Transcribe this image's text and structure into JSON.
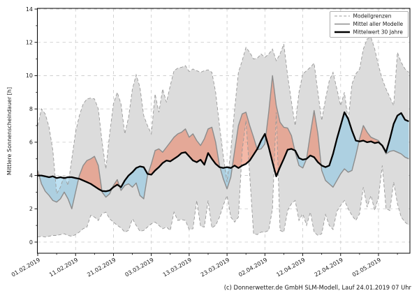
{
  "axes": {
    "ylabel": "Mittlere Sonnenscheindauer [h]",
    "caption": "(c) Donnerwetter.de GmbH SLM-Modell, Lauf 24.01.2019 07 Uhr"
  },
  "legend": {
    "position": "upper right",
    "items": [
      {
        "label": "Modellgrenzen",
        "style": "dashed",
        "color": "#999999"
      },
      {
        "label": "Mittel aller Modelle",
        "style": "solid",
        "color": "#8c8c8c"
      },
      {
        "label": "Mittelwert 30 Jahre",
        "style": "solid-bold",
        "color": "#000000"
      }
    ]
  },
  "colors": {
    "band_fill": "#dcdcdc",
    "band_edge": "#999999",
    "grid": "#c8c8c8",
    "model_mean_line": "#8c8c8c",
    "climate_mean_line": "#000000",
    "above_normal_fill": "rgba(235,125,95,0.55)",
    "below_normal_fill": "rgba(125,195,230,0.50)",
    "frame": "#000000",
    "background": "#ffffff"
  },
  "chart_data": {
    "type": "line",
    "title": "",
    "xlabel": "",
    "ylabel": "Mittlere Sonnenscheindauer [h]",
    "grid": true,
    "legend_position": "upper right",
    "ylim": [
      -0.66,
      14.05
    ],
    "xlim_days": [
      0,
      98.3
    ],
    "yticks": [
      0,
      2,
      4,
      6,
      8,
      10,
      12,
      14
    ],
    "ytick_minor": [
      1,
      3,
      5,
      7,
      9,
      11,
      13
    ],
    "xtick_days": [
      0,
      10,
      20,
      30,
      40,
      50,
      60,
      70,
      80,
      90
    ],
    "xtick_minor_days": [
      5,
      15,
      25,
      35,
      45,
      55,
      65,
      75,
      85,
      95
    ],
    "xtick_labels": [
      "01.02.2019",
      "11.02.2019",
      "21.02.2019",
      "03.03.2019",
      "13.03.2019",
      "23.03.2019",
      "02.04.2019",
      "12.04.2019",
      "22.04.2019",
      "02.05.2019"
    ],
    "x_step_days": 1,
    "series": [
      {
        "name": "Modellgrenzen (oben)",
        "style": "dashed",
        "color": "#999999",
        "values": [
          7.0,
          8.0,
          7.7,
          6.9,
          5.5,
          2.9,
          3.3,
          4.0,
          3.4,
          5.0,
          6.6,
          7.6,
          8.3,
          8.6,
          8.65,
          8.6,
          8.0,
          6.0,
          4.4,
          6.5,
          8.3,
          9.0,
          8.3,
          6.5,
          7.5,
          9.2,
          10.05,
          9.3,
          7.6,
          7.0,
          6.5,
          8.9,
          7.8,
          9.2,
          8.4,
          9.4,
          10.3,
          10.45,
          10.5,
          10.6,
          10.25,
          10.4,
          10.3,
          10.2,
          10.3,
          10.35,
          10.2,
          9.0,
          7.0,
          5.2,
          3.6,
          5.5,
          8.0,
          10.2,
          10.9,
          11.7,
          11.4,
          11.0,
          11.05,
          11.3,
          11.1,
          11.3,
          11.6,
          10.9,
          11.3,
          11.9,
          10.0,
          8.45,
          7.0,
          9.0,
          10.1,
          10.3,
          10.5,
          10.75,
          9.0,
          7.3,
          8.6,
          9.7,
          10.2,
          9.2,
          8.2,
          9.0,
          7.3,
          9.5,
          10.1,
          10.4,
          11.6,
          12.2,
          12.3,
          11.6,
          10.6,
          9.8,
          9.2,
          8.7,
          8.2,
          11.4,
          10.8,
          10.4,
          10.2
        ]
      },
      {
        "name": "Modellgrenzen (unten)",
        "style": "dashed",
        "color": "#999999",
        "values": [
          0.3,
          0.35,
          0.3,
          0.35,
          0.4,
          0.4,
          0.45,
          0.5,
          0.4,
          0.35,
          0.45,
          0.6,
          0.8,
          0.9,
          1.6,
          1.5,
          1.3,
          1.7,
          1.8,
          1.4,
          1.2,
          1.0,
          0.85,
          0.6,
          0.7,
          1.4,
          1.0,
          0.65,
          0.7,
          0.9,
          1.1,
          1.2,
          1.0,
          0.8,
          0.9,
          0.7,
          1.8,
          1.3,
          1.35,
          1.3,
          0.75,
          0.8,
          2.5,
          0.95,
          0.9,
          2.5,
          0.85,
          1.0,
          1.5,
          2.2,
          2.8,
          1.5,
          1.2,
          1.5,
          5.5,
          7.3,
          4.0,
          0.5,
          0.45,
          0.6,
          0.6,
          0.7,
          2.0,
          7.8,
          0.7,
          0.6,
          1.9,
          2.3,
          2.5,
          1.3,
          1.7,
          1.0,
          1.8,
          0.6,
          0.4,
          0.5,
          1.65,
          1.0,
          0.75,
          1.85,
          2.2,
          2.5,
          2.0,
          1.6,
          1.3,
          1.7,
          3.3,
          2.1,
          2.8,
          1.9,
          2.7,
          4.6,
          2.0,
          1.9,
          3.6,
          2.3,
          1.5,
          1.2,
          1.0
        ]
      },
      {
        "name": "Mittel aller Modelle",
        "style": "solid",
        "color": "#8c8c8c",
        "values": [
          4.3,
          3.5,
          3.05,
          2.8,
          2.5,
          2.4,
          2.6,
          3.0,
          2.6,
          2.0,
          3.0,
          4.0,
          4.6,
          4.9,
          5.0,
          5.15,
          4.6,
          3.0,
          2.7,
          2.9,
          3.4,
          3.75,
          3.1,
          3.4,
          3.5,
          3.3,
          3.55,
          2.8,
          2.6,
          4.0,
          4.7,
          5.5,
          5.6,
          5.4,
          5.7,
          6.0,
          6.3,
          6.5,
          6.6,
          6.8,
          6.3,
          6.5,
          6.1,
          5.8,
          6.2,
          6.8,
          6.9,
          6.0,
          4.6,
          3.8,
          3.2,
          3.9,
          5.5,
          7.0,
          7.7,
          7.8,
          7.0,
          6.3,
          5.55,
          5.6,
          5.9,
          7.8,
          10.0,
          8.2,
          7.2,
          6.9,
          6.85,
          6.4,
          5.4,
          4.6,
          4.45,
          5.0,
          6.5,
          7.9,
          6.5,
          4.3,
          3.7,
          3.5,
          3.3,
          3.7,
          4.1,
          4.4,
          4.2,
          4.3,
          5.2,
          6.2,
          7.0,
          6.6,
          6.3,
          6.2,
          6.1,
          5.75,
          5.3,
          5.45,
          5.5,
          5.4,
          5.3,
          5.1,
          5.0
        ]
      },
      {
        "name": "Mittelwert 30 Jahre",
        "style": "solid-bold",
        "color": "#000000",
        "values": [
          4.0,
          4.0,
          3.95,
          3.9,
          3.95,
          3.85,
          3.9,
          3.85,
          3.9,
          3.9,
          3.85,
          3.8,
          3.7,
          3.6,
          3.5,
          3.35,
          3.2,
          3.07,
          3.05,
          3.1,
          3.3,
          3.45,
          3.3,
          3.7,
          4.0,
          4.2,
          4.45,
          4.55,
          4.5,
          4.1,
          4.05,
          4.3,
          4.5,
          4.75,
          4.9,
          4.85,
          5.0,
          5.15,
          5.35,
          5.4,
          5.15,
          4.9,
          4.8,
          4.95,
          4.65,
          5.35,
          5.0,
          4.7,
          4.5,
          4.45,
          4.5,
          4.45,
          4.6,
          4.45,
          4.6,
          4.7,
          4.9,
          5.25,
          5.6,
          6.1,
          6.5,
          5.7,
          4.8,
          3.95,
          4.5,
          5.0,
          5.55,
          5.6,
          5.5,
          5.05,
          4.95,
          5.0,
          5.2,
          5.1,
          4.8,
          4.6,
          4.5,
          4.6,
          5.3,
          6.2,
          7.0,
          7.8,
          7.4,
          6.7,
          6.1,
          6.05,
          6.1,
          6.0,
          6.05,
          5.95,
          6.0,
          5.8,
          5.4,
          6.2,
          7.1,
          7.6,
          7.75,
          7.35,
          7.25
        ]
      }
    ],
    "fills": [
      {
        "name": "model-range-band",
        "between": [
          "Modellgrenzen (oben)",
          "Modellgrenzen (unten)"
        ],
        "color": "#dcdcdc"
      },
      {
        "name": "above-climate-normal",
        "between": [
          "Mittel aller Modelle",
          "Mittelwert 30 Jahre"
        ],
        "where": "mean > normal",
        "color": "rgba(235,125,95,0.55)"
      },
      {
        "name": "below-climate-normal",
        "between": [
          "Mittelwert 30 Jahre",
          "Mittel aller Modelle"
        ],
        "where": "mean < normal",
        "color": "rgba(125,195,230,0.50)"
      }
    ]
  }
}
